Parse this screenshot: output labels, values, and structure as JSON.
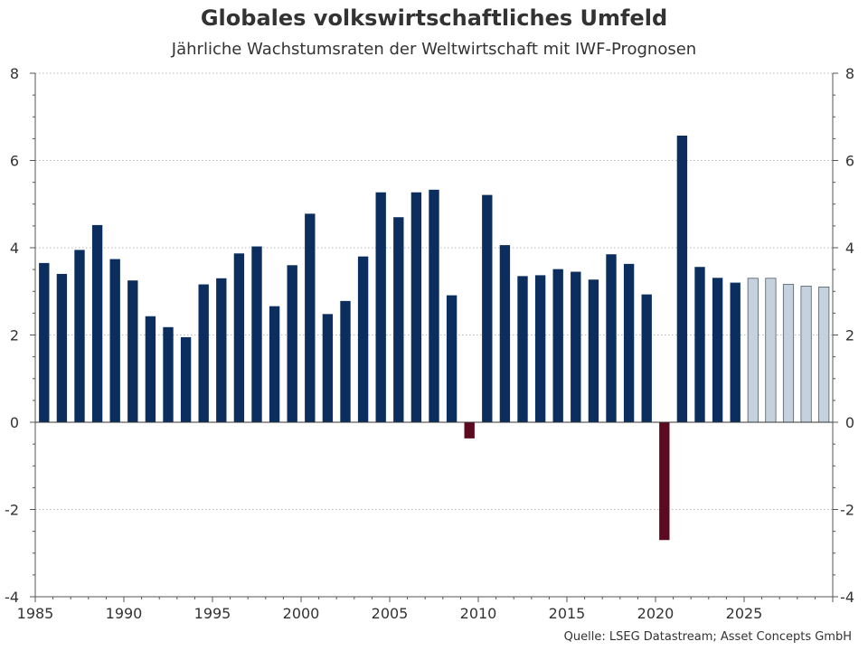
{
  "chart_data": {
    "type": "bar",
    "title": "Globales volkswirtschaftliches Umfeld",
    "subtitle": "Jährliche Wachstumsraten der Weltwirtschaft mit IWF-Prognosen",
    "xlabel": "",
    "ylabel": "",
    "ylim": [
      -4,
      8
    ],
    "yticks": [
      -4,
      -2,
      0,
      2,
      4,
      6,
      8
    ],
    "xticks": [
      1985,
      1990,
      1995,
      2000,
      2005,
      2010,
      2015,
      2020,
      2025
    ],
    "xlim": [
      1985,
      2030
    ],
    "grid": true,
    "colors": {
      "positive": "#0b2e5e",
      "negative": "#5c0a1f",
      "forecast": "#c5d1dc",
      "forecast_stroke": "#4f5d6a",
      "grid": "#b8b8b8",
      "axis": "#555555"
    },
    "x": [
      1985,
      1986,
      1987,
      1988,
      1989,
      1990,
      1991,
      1992,
      1993,
      1994,
      1995,
      1996,
      1997,
      1998,
      1999,
      2000,
      2001,
      2002,
      2003,
      2004,
      2005,
      2006,
      2007,
      2008,
      2009,
      2010,
      2011,
      2012,
      2013,
      2014,
      2015,
      2016,
      2017,
      2018,
      2019,
      2020,
      2021,
      2022,
      2023,
      2024,
      2025,
      2026,
      2027,
      2028,
      2029
    ],
    "values": [
      3.65,
      3.4,
      3.95,
      4.52,
      3.74,
      3.25,
      2.43,
      2.18,
      1.95,
      3.16,
      3.3,
      3.87,
      4.03,
      2.66,
      3.6,
      4.78,
      2.48,
      2.78,
      3.8,
      5.27,
      4.7,
      5.27,
      5.33,
      2.91,
      -0.37,
      5.21,
      4.06,
      3.35,
      3.37,
      3.51,
      3.45,
      3.27,
      3.85,
      3.63,
      2.93,
      -2.7,
      6.57,
      3.56,
      3.31,
      3.2,
      3.3,
      3.3,
      3.16,
      3.12,
      3.1
    ],
    "forecast": [
      false,
      false,
      false,
      false,
      false,
      false,
      false,
      false,
      false,
      false,
      false,
      false,
      false,
      false,
      false,
      false,
      false,
      false,
      false,
      false,
      false,
      false,
      false,
      false,
      false,
      false,
      false,
      false,
      false,
      false,
      false,
      false,
      false,
      false,
      false,
      false,
      false,
      false,
      false,
      false,
      true,
      true,
      true,
      true,
      true
    ]
  },
  "source": "Quelle: LSEG Datastream; Asset Concepts GmbH"
}
